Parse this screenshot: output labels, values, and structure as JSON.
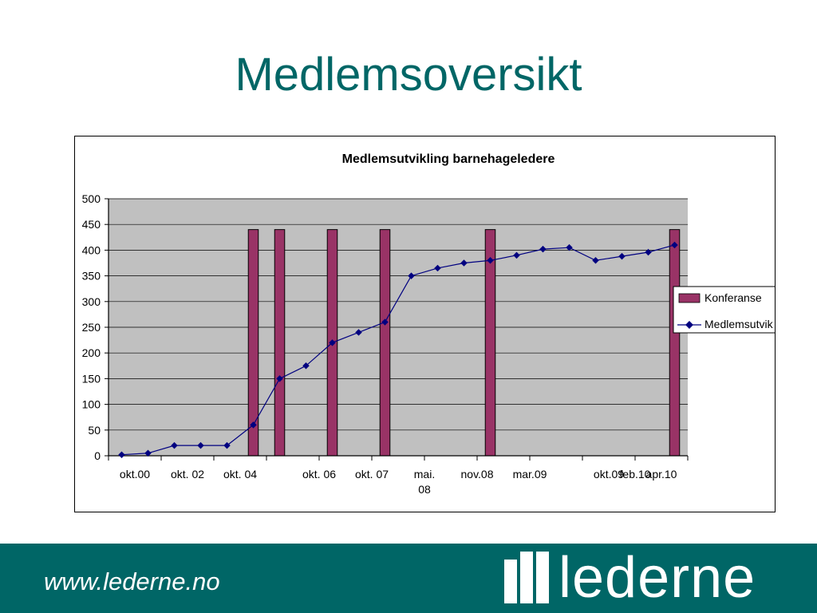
{
  "slide": {
    "title": "Medlemsoversikt"
  },
  "footer": {
    "url": "www.lederne.no",
    "logo_text": "lederne"
  },
  "colors": {
    "accent": "#006666",
    "bar": "#993366",
    "line": "#000080",
    "plot_bg": "#c0c0c0"
  },
  "chart_data": {
    "type": "bar+line",
    "title": "Medlemsutvikling barnehageledere",
    "xlabel": "",
    "ylabel": "",
    "ylim": [
      0,
      500
    ],
    "yticks": [
      "0",
      "50",
      "100",
      "150",
      "200",
      "250",
      "300",
      "350",
      "400",
      "450",
      "500"
    ],
    "grid": true,
    "legend_position": "right",
    "x_tick_labels": [
      {
        "label": "okt.00",
        "index": 1
      },
      {
        "label": "okt. 02",
        "index": 3
      },
      {
        "label": "okt. 04",
        "index": 5
      },
      {
        "label": "okt. 06",
        "index": 8
      },
      {
        "label": "okt. 07",
        "index": 10
      },
      {
        "label": "mai. 08",
        "index": 12
      },
      {
        "label": "nov.08",
        "index": 14
      },
      {
        "label": "mar.09",
        "index": 16
      },
      {
        "label": "okt.09",
        "index": 19
      },
      {
        "label": "feb.10",
        "index": 20
      },
      {
        "label": "apr.10",
        "index": 21
      }
    ],
    "series": [
      {
        "name": "Konferanse",
        "kind": "bar",
        "values": [
          null,
          null,
          null,
          null,
          null,
          440,
          440,
          null,
          440,
          null,
          440,
          null,
          null,
          null,
          440,
          null,
          null,
          null,
          null,
          null,
          null,
          440
        ]
      },
      {
        "name": "Medlemsutvik",
        "kind": "line",
        "values": [
          2,
          5,
          20,
          20,
          20,
          60,
          150,
          175,
          220,
          240,
          260,
          350,
          365,
          375,
          380,
          390,
          402,
          405,
          380,
          388,
          396,
          410
        ]
      }
    ]
  }
}
